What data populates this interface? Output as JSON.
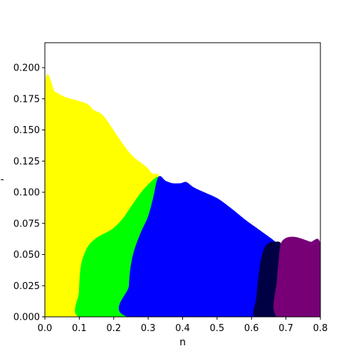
{
  "chart_data": {
    "type": "area",
    "title": "",
    "xlabel": "n",
    "ylabel": "-",
    "xlim": [
      0.0,
      0.8
    ],
    "ylim": [
      0.0,
      0.22
    ],
    "xticks": [
      "0.0",
      "0.1",
      "0.2",
      "0.3",
      "0.4",
      "0.5",
      "0.6",
      "0.7",
      "0.8"
    ],
    "yticks": [
      "0.000",
      "0.025",
      "0.050",
      "0.075",
      "0.100",
      "0.125",
      "0.150",
      "0.175",
      "0.200"
    ],
    "grid": false,
    "legend": "none",
    "regions": [
      {
        "color": "#ffff00",
        "points": [
          [
            0.0,
            0.0
          ],
          [
            0.0,
            0.18
          ],
          [
            0.03,
            0.18
          ],
          [
            0.06,
            0.176
          ],
          [
            0.12,
            0.171
          ],
          [
            0.14,
            0.166
          ],
          [
            0.17,
            0.161
          ],
          [
            0.21,
            0.145
          ],
          [
            0.25,
            0.13
          ],
          [
            0.295,
            0.12
          ],
          [
            0.31,
            0.115
          ],
          [
            0.33,
            0.112
          ],
          [
            0.29,
            0.09
          ],
          [
            0.27,
            0.072
          ],
          [
            0.21,
            0.065
          ],
          [
            0.16,
            0.058
          ],
          [
            0.125,
            0.04
          ],
          [
            0.1,
            0.03
          ],
          [
            0.1,
            0.0
          ]
        ]
      },
      {
        "color": "#00ff00",
        "points": [
          [
            0.1,
            0.0
          ],
          [
            0.1,
            0.02
          ],
          [
            0.105,
            0.04
          ],
          [
            0.115,
            0.05
          ],
          [
            0.13,
            0.058
          ],
          [
            0.155,
            0.064
          ],
          [
            0.195,
            0.07
          ],
          [
            0.225,
            0.078
          ],
          [
            0.255,
            0.09
          ],
          [
            0.29,
            0.103
          ],
          [
            0.33,
            0.112
          ],
          [
            0.315,
            0.095
          ],
          [
            0.3,
            0.075
          ],
          [
            0.29,
            0.063
          ],
          [
            0.27,
            0.05
          ],
          [
            0.25,
            0.035
          ],
          [
            0.245,
            0.02
          ],
          [
            0.245,
            0.0
          ]
        ]
      },
      {
        "color": "#0000ff",
        "points": [
          [
            0.245,
            0.0
          ],
          [
            0.245,
            0.025
          ],
          [
            0.25,
            0.04
          ],
          [
            0.26,
            0.053
          ],
          [
            0.28,
            0.068
          ],
          [
            0.3,
            0.08
          ],
          [
            0.315,
            0.095
          ],
          [
            0.33,
            0.112
          ],
          [
            0.35,
            0.109
          ],
          [
            0.37,
            0.107
          ],
          [
            0.395,
            0.107
          ],
          [
            0.41,
            0.108
          ],
          [
            0.43,
            0.104
          ],
          [
            0.46,
            0.1
          ],
          [
            0.5,
            0.095
          ],
          [
            0.54,
            0.087
          ],
          [
            0.58,
            0.078
          ],
          [
            0.62,
            0.07
          ],
          [
            0.66,
            0.062
          ],
          [
            0.685,
            0.056
          ],
          [
            0.67,
            0.06
          ],
          [
            0.645,
            0.058
          ],
          [
            0.63,
            0.048
          ],
          [
            0.62,
            0.03
          ],
          [
            0.615,
            0.015
          ],
          [
            0.61,
            0.0
          ]
        ]
      },
      {
        "color": "#000044",
        "points": [
          [
            0.61,
            0.0
          ],
          [
            0.615,
            0.015
          ],
          [
            0.62,
            0.03
          ],
          [
            0.63,
            0.048
          ],
          [
            0.645,
            0.058
          ],
          [
            0.67,
            0.06
          ],
          [
            0.685,
            0.058
          ],
          [
            0.68,
            0.045
          ],
          [
            0.675,
            0.03
          ],
          [
            0.675,
            0.0
          ]
        ]
      },
      {
        "color": "#770077",
        "points": [
          [
            0.675,
            0.0
          ],
          [
            0.675,
            0.03
          ],
          [
            0.68,
            0.045
          ],
          [
            0.685,
            0.058
          ],
          [
            0.7,
            0.063
          ],
          [
            0.72,
            0.064
          ],
          [
            0.74,
            0.063
          ],
          [
            0.77,
            0.06
          ],
          [
            0.8,
            0.057
          ],
          [
            0.8,
            0.0
          ]
        ]
      }
    ]
  }
}
